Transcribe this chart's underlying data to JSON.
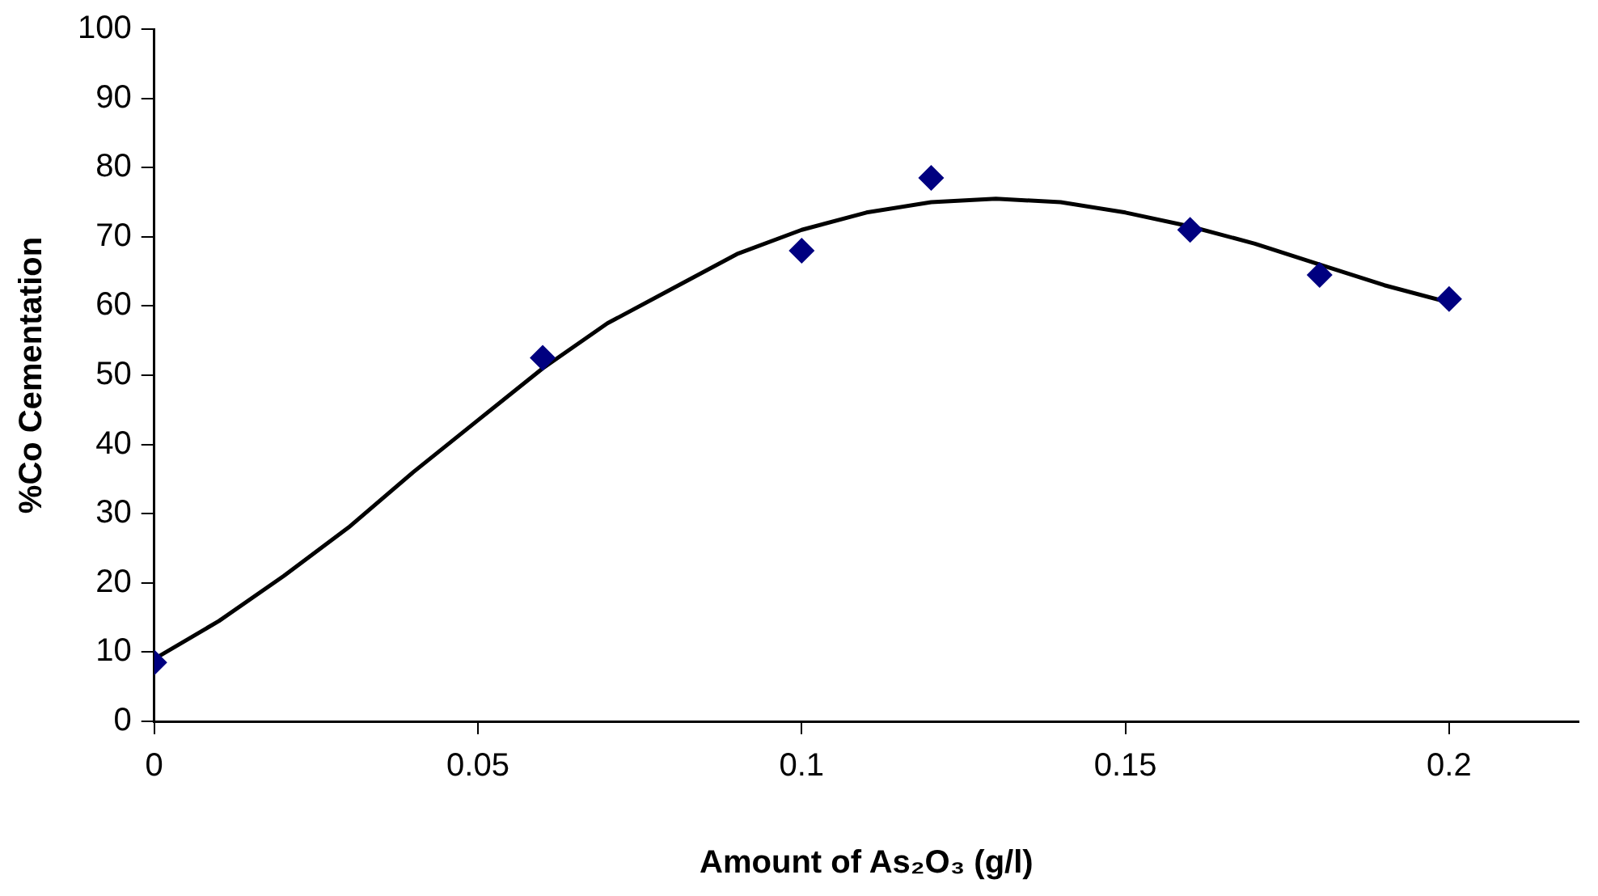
{
  "chart_data": {
    "type": "scatter",
    "xlabel": "Amount of As₂O₃ (g/l)",
    "ylabel": "%Co Cementation",
    "xlim": [
      0,
      0.22
    ],
    "xticks": [
      0,
      0.05,
      0.1,
      0.15,
      0.2
    ],
    "ylim": [
      0,
      100
    ],
    "yticks": [
      0,
      10,
      20,
      30,
      40,
      50,
      60,
      70,
      80,
      90,
      100
    ],
    "grid": false,
    "legend": false,
    "series": [
      {
        "color": "#000080",
        "marker": "diamond",
        "x": [
          0,
          0.06,
          0.1,
          0.12,
          0.16,
          0.18,
          0.2
        ],
        "values": [
          8.5,
          52.5,
          68,
          78.5,
          71,
          64.5,
          61
        ]
      },
      {
        "type": "line",
        "color": "#000000",
        "marker": "none",
        "line_style": "solid",
        "x": [
          0,
          0.01,
          0.02,
          0.03,
          0.04,
          0.05,
          0.06,
          0.07,
          0.08,
          0.09,
          0.1,
          0.11,
          0.12,
          0.13,
          0.14,
          0.15,
          0.16,
          0.17,
          0.18,
          0.19,
          0.2
        ],
        "values": [
          9,
          14.5,
          21,
          28,
          36,
          43.5,
          51,
          57.5,
          62.5,
          67.5,
          71,
          73.5,
          75,
          75.5,
          75,
          73.5,
          71.5,
          69,
          66,
          63,
          60.5
        ]
      }
    ]
  }
}
